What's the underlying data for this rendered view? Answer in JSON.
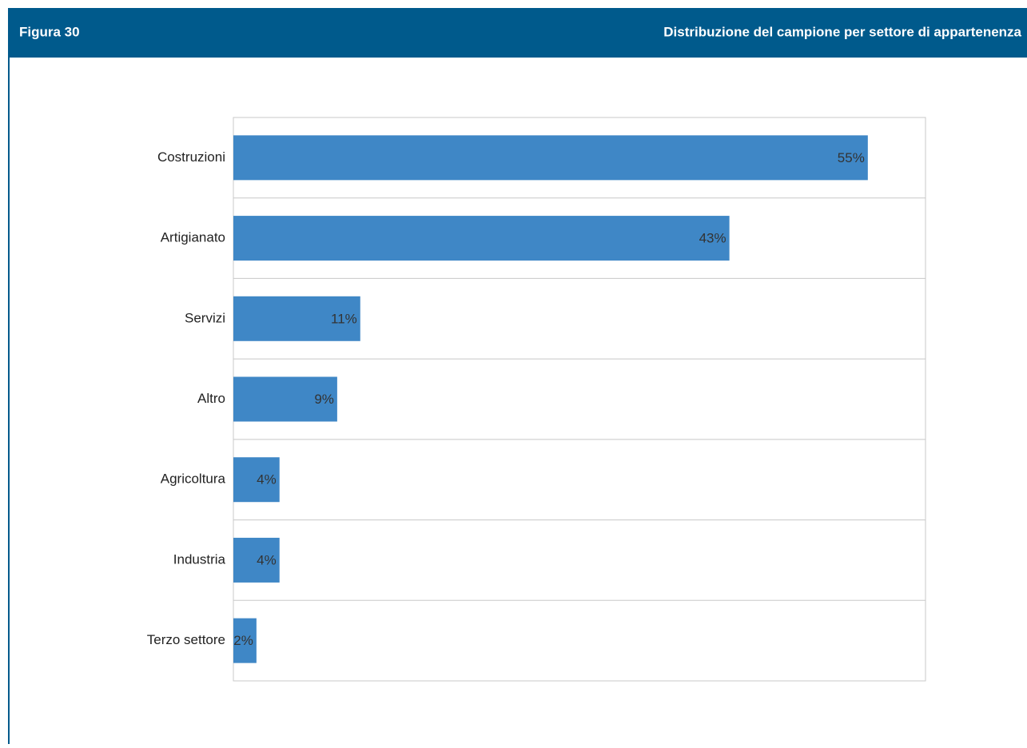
{
  "chart_data": {
    "type": "bar",
    "orientation": "horizontal",
    "label": "Figura 30",
    "title": "Distribuzione del campione per settore di appartenenza",
    "categories": [
      "Costruzioni",
      "Artigianato",
      "Servizi",
      "Altro",
      "Agricoltura",
      "Industria",
      "Terzo settore"
    ],
    "values": [
      55,
      43,
      11,
      9,
      4,
      4,
      2
    ],
    "value_labels": [
      "55%",
      "43%",
      "11%",
      "9%",
      "4%",
      "4%",
      "2%"
    ],
    "color": "#3f87c6",
    "xlim": [
      0,
      60
    ]
  }
}
